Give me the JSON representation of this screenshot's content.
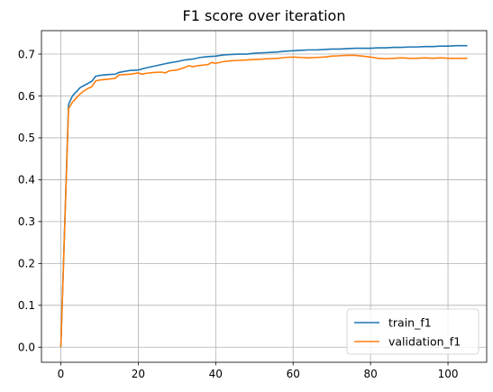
{
  "chart_data": {
    "type": "line",
    "title": "F1 score over iteration",
    "xlabel": "",
    "ylabel": "",
    "xlim": [
      -5,
      110
    ],
    "ylim": [
      -0.036,
      0.756
    ],
    "xticks": [
      0,
      20,
      40,
      60,
      80,
      100
    ],
    "yticks": [
      0.0,
      0.1,
      0.2,
      0.3,
      0.4,
      0.5,
      0.6,
      0.7
    ],
    "xtick_labels": [
      "0",
      "20",
      "40",
      "60",
      "80",
      "100"
    ],
    "ytick_labels": [
      "0.0",
      "0.1",
      "0.2",
      "0.3",
      "0.4",
      "0.5",
      "0.6",
      "0.7"
    ],
    "grid": true,
    "legend_position": "lower-right",
    "series": [
      {
        "name": "train_f1",
        "color": "#1f77b4",
        "x": [
          0,
          2,
          3,
          4,
          5,
          6,
          7,
          8,
          9,
          10,
          12,
          14,
          15,
          16,
          18,
          20,
          22,
          24,
          26,
          28,
          30,
          32,
          34,
          36,
          38,
          40,
          42,
          44,
          46,
          48,
          50,
          52,
          54,
          56,
          58,
          60,
          62,
          64,
          66,
          68,
          70,
          72,
          74,
          76,
          78,
          80,
          82,
          84,
          86,
          88,
          90,
          92,
          94,
          96,
          98,
          100,
          102,
          105
        ],
        "y": [
          0.0,
          0.58,
          0.6,
          0.61,
          0.62,
          0.625,
          0.63,
          0.635,
          0.647,
          0.649,
          0.651,
          0.652,
          0.656,
          0.658,
          0.661,
          0.662,
          0.667,
          0.671,
          0.675,
          0.679,
          0.682,
          0.686,
          0.688,
          0.692,
          0.694,
          0.695,
          0.698,
          0.699,
          0.7,
          0.7,
          0.702,
          0.703,
          0.704,
          0.705,
          0.707,
          0.708,
          0.709,
          0.71,
          0.71,
          0.711,
          0.712,
          0.712,
          0.713,
          0.714,
          0.714,
          0.714,
          0.715,
          0.715,
          0.716,
          0.716,
          0.717,
          0.717,
          0.718,
          0.718,
          0.719,
          0.719,
          0.72,
          0.72
        ]
      },
      {
        "name": "validation_f1",
        "color": "#ff7f0e",
        "x": [
          0,
          2,
          3,
          4,
          5,
          6,
          7,
          8,
          9,
          10,
          12,
          14,
          15,
          16,
          18,
          20,
          21,
          22,
          24,
          26,
          27,
          28,
          30,
          32,
          33,
          34,
          36,
          38,
          39,
          40,
          42,
          44,
          46,
          48,
          50,
          52,
          54,
          56,
          58,
          60,
          62,
          64,
          66,
          68,
          70,
          72,
          74,
          76,
          78,
          80,
          82,
          84,
          86,
          88,
          90,
          92,
          94,
          96,
          98,
          100,
          102,
          105
        ],
        "y": [
          0.0,
          0.57,
          0.585,
          0.595,
          0.605,
          0.612,
          0.618,
          0.622,
          0.636,
          0.638,
          0.64,
          0.642,
          0.65,
          0.651,
          0.652,
          0.655,
          0.652,
          0.654,
          0.656,
          0.657,
          0.655,
          0.66,
          0.662,
          0.668,
          0.672,
          0.67,
          0.673,
          0.675,
          0.68,
          0.678,
          0.682,
          0.684,
          0.685,
          0.686,
          0.687,
          0.688,
          0.689,
          0.69,
          0.692,
          0.693,
          0.692,
          0.691,
          0.692,
          0.693,
          0.695,
          0.696,
          0.697,
          0.697,
          0.695,
          0.693,
          0.69,
          0.689,
          0.69,
          0.691,
          0.69,
          0.69,
          0.691,
          0.69,
          0.691,
          0.69,
          0.69,
          0.69
        ]
      }
    ]
  }
}
